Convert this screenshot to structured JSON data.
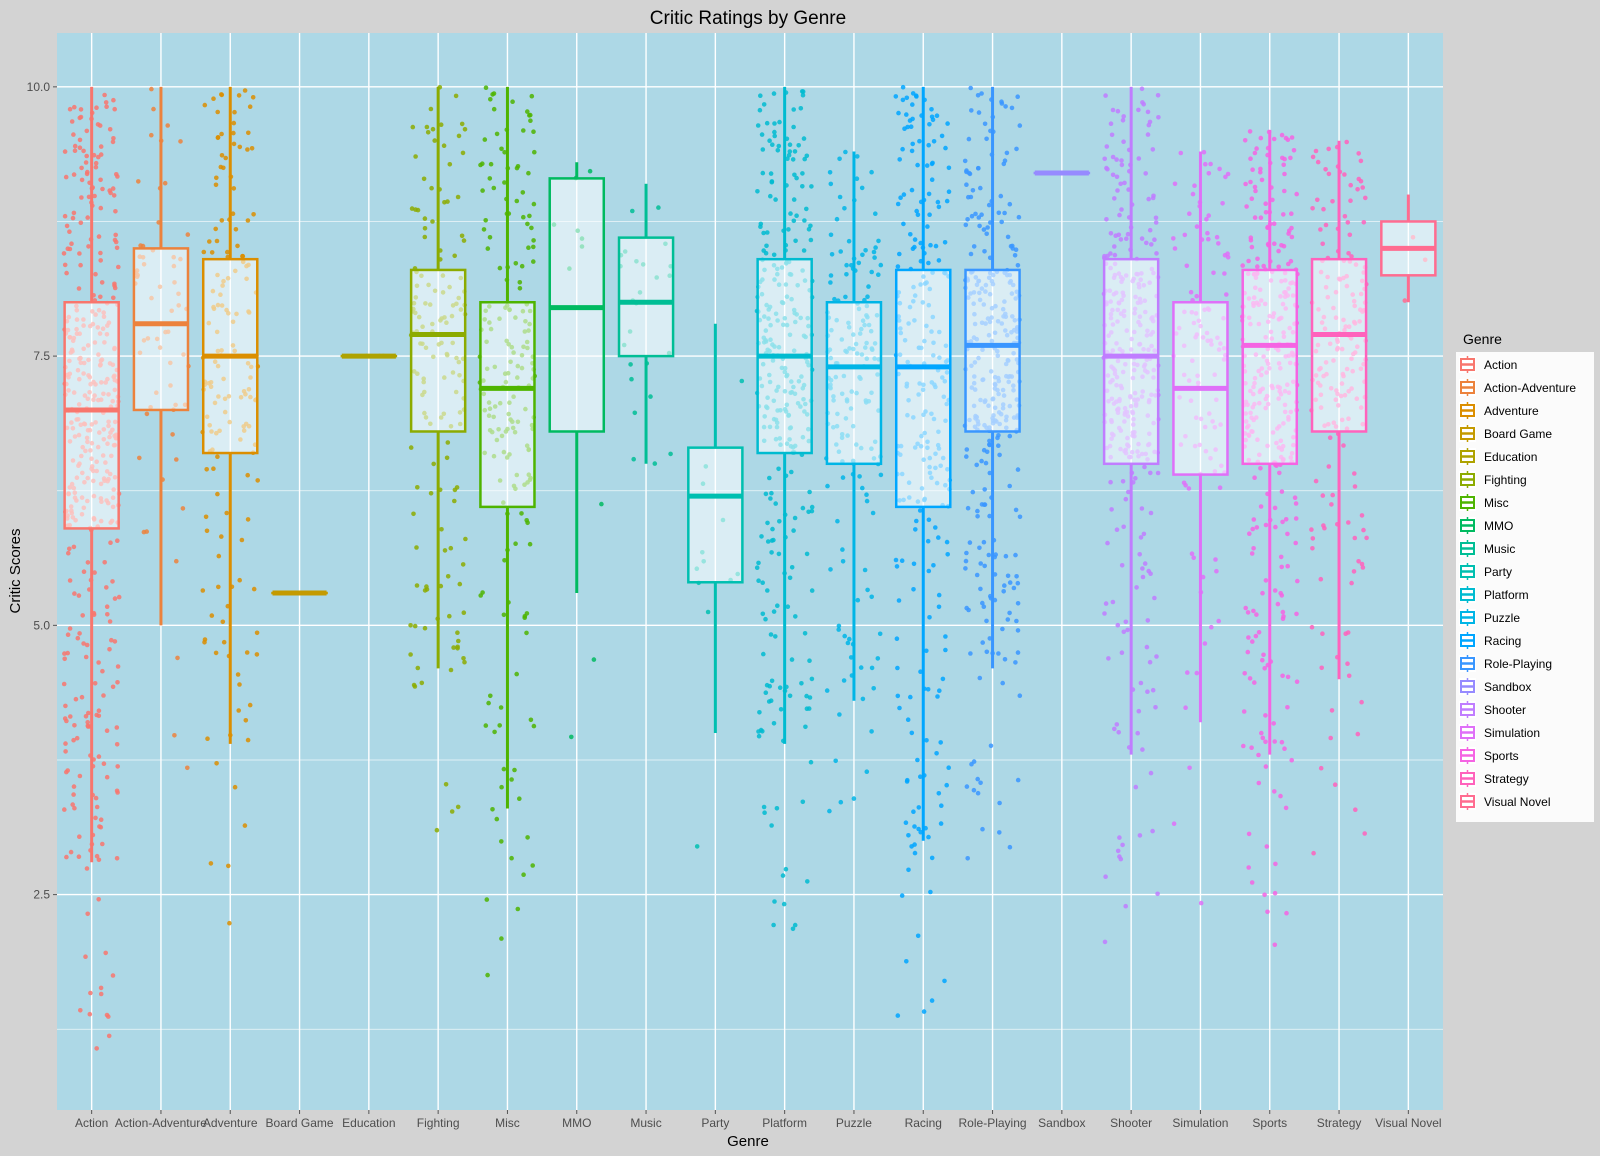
{
  "chart_data": {
    "type": "boxplot",
    "title": "Critic Ratings by Genre",
    "xlabel": "Genre",
    "ylabel": "Critic Scores",
    "ylim": [
      0.5,
      10.5
    ],
    "yticks": [
      2.5,
      5.0,
      7.5,
      10.0
    ],
    "ytick_labels": [
      "2.5",
      "5.0",
      "7.5",
      "10.0"
    ],
    "legend_title": "Genre",
    "legend_position": "right",
    "grid": true,
    "categories": [
      "Action",
      "Action-Adventure",
      "Adventure",
      "Board Game",
      "Education",
      "Fighting",
      "Misc",
      "MMO",
      "Music",
      "Party",
      "Platform",
      "Puzzle",
      "Racing",
      "Role-Playing",
      "Sandbox",
      "Shooter",
      "Simulation",
      "Sports",
      "Strategy",
      "Visual Novel"
    ],
    "colors": [
      "#F8766D",
      "#EC823C",
      "#DB8E00",
      "#C49A00",
      "#AEA200",
      "#8CAB00",
      "#4EB400",
      "#00BA60",
      "#00BE95",
      "#00BFB0",
      "#00BBD0",
      "#00B5E6",
      "#00A6FF",
      "#3996FF",
      "#968AFF",
      "#C07DFF",
      "#DF70F8",
      "#F564E3",
      "#FF62BC",
      "#FF6C90"
    ],
    "series": [
      {
        "name": "Action",
        "whisker_low": 2.8,
        "q1": 5.9,
        "median": 7.0,
        "q3": 8.0,
        "whisker_high": 10.0
      },
      {
        "name": "Action-Adventure",
        "whisker_low": 5.0,
        "q1": 7.0,
        "median": 7.8,
        "q3": 8.5,
        "whisker_high": 10.0
      },
      {
        "name": "Adventure",
        "whisker_low": 3.9,
        "q1": 6.6,
        "median": 7.5,
        "q3": 8.4,
        "whisker_high": 10.0
      },
      {
        "name": "Board Game",
        "whisker_low": 5.3,
        "q1": 5.3,
        "median": 5.3,
        "q3": 5.3,
        "whisker_high": 5.3
      },
      {
        "name": "Education",
        "whisker_low": 7.5,
        "q1": 7.5,
        "median": 7.5,
        "q3": 7.5,
        "whisker_high": 7.5
      },
      {
        "name": "Fighting",
        "whisker_low": 4.6,
        "q1": 6.8,
        "median": 7.7,
        "q3": 8.3,
        "whisker_high": 10.0
      },
      {
        "name": "Misc",
        "whisker_low": 3.3,
        "q1": 6.1,
        "median": 7.2,
        "q3": 8.0,
        "whisker_high": 10.0
      },
      {
        "name": "MMO",
        "whisker_low": 5.3,
        "q1": 6.8,
        "median": 7.95,
        "q3": 9.15,
        "whisker_high": 9.3
      },
      {
        "name": "Music",
        "whisker_low": 6.5,
        "q1": 7.5,
        "median": 8.0,
        "q3": 8.6,
        "whisker_high": 9.1
      },
      {
        "name": "Party",
        "whisker_low": 4.0,
        "q1": 5.4,
        "median": 6.2,
        "q3": 6.65,
        "whisker_high": 7.8
      },
      {
        "name": "Platform",
        "whisker_low": 3.9,
        "q1": 6.6,
        "median": 7.5,
        "q3": 8.4,
        "whisker_high": 10.0
      },
      {
        "name": "Puzzle",
        "whisker_low": 4.3,
        "q1": 6.5,
        "median": 7.4,
        "q3": 8.0,
        "whisker_high": 9.4
      },
      {
        "name": "Racing",
        "whisker_low": 3.0,
        "q1": 6.1,
        "median": 7.4,
        "q3": 8.3,
        "whisker_high": 10.0
      },
      {
        "name": "Role-Playing",
        "whisker_low": 4.6,
        "q1": 6.8,
        "median": 7.6,
        "q3": 8.3,
        "whisker_high": 10.0
      },
      {
        "name": "Sandbox",
        "whisker_low": 9.2,
        "q1": 9.2,
        "median": 9.2,
        "q3": 9.2,
        "whisker_high": 9.2
      },
      {
        "name": "Shooter",
        "whisker_low": 3.8,
        "q1": 6.5,
        "median": 7.5,
        "q3": 8.4,
        "whisker_high": 10.0
      },
      {
        "name": "Simulation",
        "whisker_low": 4.1,
        "q1": 6.4,
        "median": 7.2,
        "q3": 8.0,
        "whisker_high": 9.4
      },
      {
        "name": "Sports",
        "whisker_low": 3.8,
        "q1": 6.5,
        "median": 7.6,
        "q3": 8.3,
        "whisker_high": 9.6
      },
      {
        "name": "Strategy",
        "whisker_low": 4.5,
        "q1": 6.8,
        "median": 7.7,
        "q3": 8.4,
        "whisker_high": 9.5
      },
      {
        "name": "Visual Novel",
        "whisker_low": 8.0,
        "q1": 8.25,
        "median": 8.5,
        "q3": 8.75,
        "whisker_high": 9.0
      }
    ],
    "jitter_counts": [
      420,
      60,
      160,
      3,
      4,
      150,
      190,
      10,
      25,
      12,
      300,
      170,
      250,
      320,
      2,
      330,
      110,
      330,
      180,
      3
    ]
  }
}
